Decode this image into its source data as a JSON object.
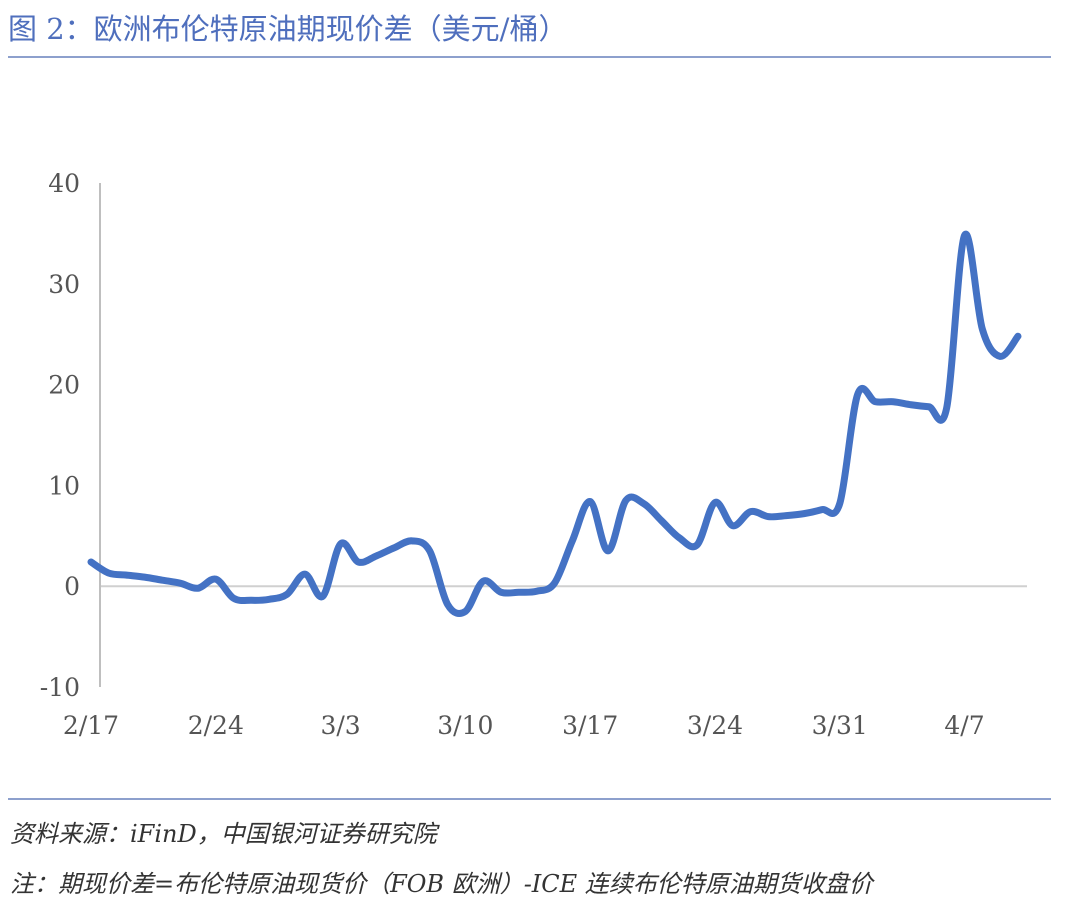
{
  "title": "图 2：欧洲布伦特原油期现价差（美元/桶）",
  "source": "资料来源：iFinD，中国银河证券研究院",
  "footnote": "注：期现价差=布伦特原油现货价（FOB 欧洲）-ICE 连续布伦特原油期货收盘价",
  "chart_data": {
    "type": "line",
    "title": "",
    "xlabel": "",
    "ylabel": "",
    "ylim": [
      -10,
      40
    ],
    "yticks": [
      "40",
      "30",
      "20",
      "10",
      "0",
      "-10"
    ],
    "xticks": [
      "2/17",
      "2/24",
      "3/3",
      "3/10",
      "3/17",
      "3/24",
      "3/31",
      "4/7"
    ],
    "grid": false,
    "line_color": "#4472c4",
    "series": [
      {
        "name": "",
        "x": [
          "2/17",
          "2/18",
          "2/19",
          "2/20",
          "2/21",
          "2/22",
          "2/23",
          "2/24",
          "2/25",
          "2/26",
          "2/27",
          "2/28",
          "3/1",
          "3/2",
          "3/3",
          "3/4",
          "3/5",
          "3/6",
          "3/7",
          "3/8",
          "3/9",
          "3/10",
          "3/11",
          "3/12",
          "3/13",
          "3/14",
          "3/15",
          "3/16",
          "3/17",
          "3/18",
          "3/19",
          "3/20",
          "3/21",
          "3/22",
          "3/23",
          "3/24",
          "3/25",
          "3/26",
          "3/27",
          "3/28",
          "3/29",
          "3/30",
          "3/31",
          "4/1",
          "4/2",
          "4/3",
          "4/4",
          "4/5",
          "4/6",
          "4/7",
          "4/8",
          "4/9",
          "4/10"
        ],
        "values": [
          2.4,
          1.3,
          1.1,
          0.9,
          0.6,
          0.3,
          -0.2,
          0.7,
          -1.2,
          -1.4,
          -1.3,
          -0.8,
          1.2,
          -1.0,
          4.2,
          2.4,
          3.0,
          3.8,
          4.5,
          3.5,
          -1.8,
          -2.5,
          0.5,
          -0.6,
          -0.6,
          -0.5,
          0.3,
          4.5,
          8.4,
          3.5,
          8.5,
          8.2,
          6.5,
          4.8,
          4.1,
          8.3,
          6.0,
          7.4,
          6.9,
          7.0,
          7.2,
          7.6,
          8.2,
          19.0,
          18.3,
          18.3,
          18.0,
          17.8,
          17.7,
          34.8,
          25.5,
          22.8,
          24.8
        ]
      }
    ]
  }
}
